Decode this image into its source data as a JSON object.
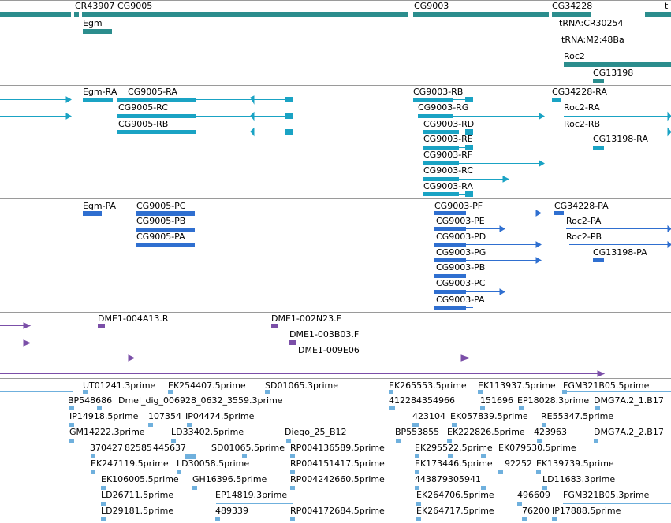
{
  "colors": {
    "gene": "#2b8d8d",
    "transcript": "#1aa3c4",
    "cds": "#2f6fd0",
    "clone": "#7b4fa8",
    "est": "#6fb0dd"
  },
  "gene_track": {
    "labels": [
      "CR43907",
      "CG9005",
      "CG9003",
      "CG34228",
      "t",
      "Egm",
      "tRNA:CR30254",
      "tRNA:M2:48Ba",
      "Roc2",
      "CG13198"
    ]
  },
  "transcript_track": {
    "labels": [
      "Egm-RA",
      "CG9005-RA",
      "CG9005-RC",
      "CG9005-RB",
      "CG9003-RB",
      "CG9003-RG",
      "CG9003-RD",
      "CG9003-RE",
      "CG9003-RF",
      "CG9003-RC",
      "CG9003-RA",
      "CG34228-RA",
      "Roc2-RA",
      "Roc2-RB",
      "CG13198-RA"
    ]
  },
  "protein_track": {
    "labels": [
      "Egm-PA",
      "CG9005-PC",
      "CG9005-PB",
      "CG9005-PA",
      "CG9003-PF",
      "CG9003-PE",
      "CG9003-PD",
      "CG9003-PG",
      "CG9003-PB",
      "CG9003-PC",
      "CG9003-PA",
      "CG34228-PA",
      "Roc2-PA",
      "Roc2-PB",
      "CG13198-PA"
    ]
  },
  "clone_track": {
    "labels": [
      "DME1-004A13.R",
      "DME1-002N23.F",
      "DME1-003B03.F",
      "DME1-009E06"
    ]
  },
  "est_track": {
    "labels": [
      "UT01241.3prime",
      "EK254407.5prime",
      "SD01065.3prime",
      "EK265553.5prime",
      "EK113937.5prime",
      "FGM321B05.5prime",
      "BP548686",
      "Dmel_dig_006928_0632_3559.3prime",
      "412284354966",
      "151696",
      "EP18028.3prime",
      "DMG7A.2_1.B17",
      "IP14918.5prime",
      "107354",
      "IP04474.5prime",
      "423104",
      "EK057839.5prime",
      "RE55347.5prime",
      "GM14222.3prime",
      "LD33402.5prime",
      "Diego_25_B12",
      "BP553855",
      "EK222826.5prime",
      "423963",
      "DMG7A.2_2.B17",
      "370427",
      "82585",
      "445637",
      "SD01065.5prime",
      "RP004136589.5prime",
      "EK295522.5prime",
      "EK079530.5prime",
      "EK247119.5prime",
      "LD30058.5prime",
      "RP004151417.5prime",
      "EK173446.5prime",
      "92252",
      "EK139739.5prime",
      "EK106005.5prime",
      "GH16396.5prime",
      "RP004242660.5prime",
      "443879305941",
      "LD11683.3prime",
      "LD26711.5prime",
      "EP14819.3prime",
      "EK264706.5prime",
      "496609",
      "FGM321B05.3prime",
      "LD29181.5prime",
      "489339",
      "RP004172684.5prime",
      "EK264717.5prime",
      "76200",
      "IP17888.5prime"
    ]
  }
}
